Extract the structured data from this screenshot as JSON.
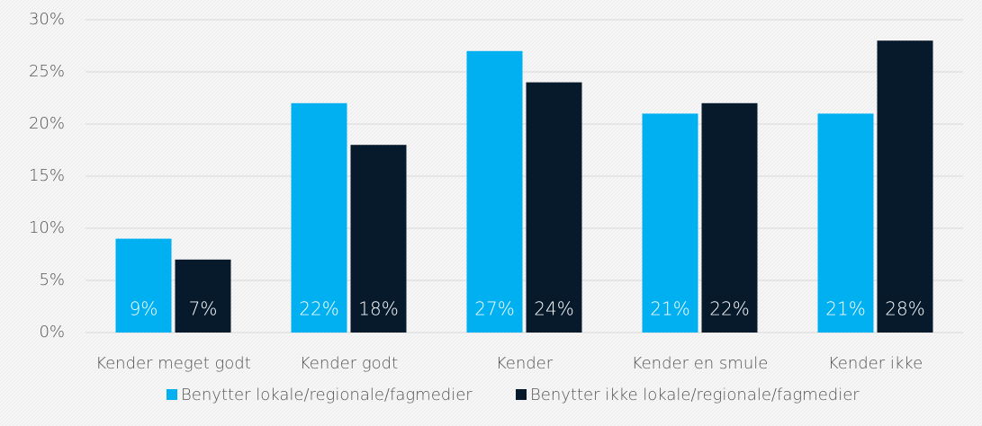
{
  "chart_data": {
    "type": "bar",
    "categories": [
      "Kender meget godt",
      "Kender godt",
      "Kender",
      "Kender en smule",
      "Kender ikke"
    ],
    "series": [
      {
        "name": "Benytter lokale/regionale/fagmedier",
        "color": "#00b0f0",
        "values": [
          9,
          22,
          27,
          21,
          21
        ],
        "value_labels": [
          "9%",
          "22%",
          "27%",
          "21%",
          "21%"
        ]
      },
      {
        "name": "Benytter ikke lokale/regionale/fagmedier",
        "color": "#071a2c",
        "values": [
          7,
          18,
          24,
          22,
          28
        ],
        "value_labels": [
          "7%",
          "18%",
          "24%",
          "22%",
          "28%"
        ]
      }
    ],
    "ylim": [
      0,
      30
    ],
    "yticks": [
      {
        "value": 0,
        "label": "0%"
      },
      {
        "value": 5,
        "label": "5%"
      },
      {
        "value": 10,
        "label": "10%"
      },
      {
        "value": 15,
        "label": "15%"
      },
      {
        "value": 20,
        "label": "20%"
      },
      {
        "value": 25,
        "label": "25%"
      },
      {
        "value": 30,
        "label": "30%"
      }
    ],
    "grid": true,
    "legend": "bottom"
  }
}
